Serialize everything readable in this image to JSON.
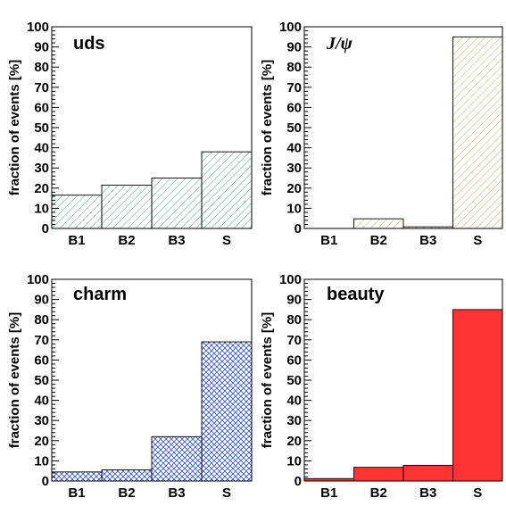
{
  "chart_data": [
    {
      "type": "bar",
      "title": "uds",
      "ylabel": "fraction of events [%]",
      "categories": [
        "B1",
        "B2",
        "B3",
        "S"
      ],
      "values": [
        16.5,
        21.5,
        25,
        38
      ],
      "ylim": [
        0,
        100
      ],
      "yticks": [
        "0",
        "10",
        "20",
        "30",
        "40",
        "50",
        "60",
        "70",
        "80",
        "90",
        "100"
      ],
      "fill": "diagonal-hatch",
      "color": "#3c9a78"
    },
    {
      "type": "bar",
      "title": "J/ψ",
      "ylabel": "fraction of events [%]",
      "categories": [
        "B1",
        "B2",
        "B3",
        "S"
      ],
      "values": [
        0,
        4.8,
        0.8,
        95
      ],
      "ylim": [
        0,
        100
      ],
      "yticks": [
        "0",
        "10",
        "20",
        "30",
        "40",
        "50",
        "60",
        "70",
        "80",
        "90",
        "100"
      ],
      "fill": "diagonal-hatch",
      "color": "#c9a04a"
    },
    {
      "type": "bar",
      "title": "charm",
      "ylabel": "fraction of events [%]",
      "categories": [
        "B1",
        "B2",
        "B3",
        "S"
      ],
      "values": [
        4.5,
        5.5,
        22,
        69
      ],
      "ylim": [
        0,
        100
      ],
      "yticks": [
        "0",
        "10",
        "20",
        "30",
        "40",
        "50",
        "60",
        "70",
        "80",
        "90",
        "100"
      ],
      "fill": "cross-hatch",
      "color": "#2f50d8"
    },
    {
      "type": "bar",
      "title": "beauty",
      "ylabel": "fraction of events [%]",
      "categories": [
        "B1",
        "B2",
        "B3",
        "S"
      ],
      "values": [
        1.2,
        6.8,
        7.8,
        85
      ],
      "ylim": [
        0,
        100
      ],
      "yticks": [
        "0",
        "10",
        "20",
        "30",
        "40",
        "50",
        "60",
        "70",
        "80",
        "90",
        "100"
      ],
      "fill": "solid",
      "color": "#ff3333"
    }
  ]
}
